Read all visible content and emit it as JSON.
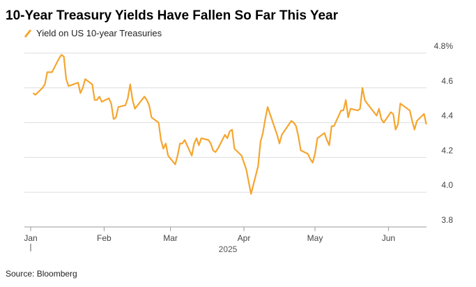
{
  "chart_data": {
    "type": "line",
    "title": "10-Year Treasury Yields Have Fallen So Far This Year",
    "x_axis_label": "2025",
    "source": "Source: Bloomberg",
    "x": [
      1,
      2,
      5,
      6,
      7,
      9,
      12,
      13,
      14,
      15,
      16,
      20,
      21,
      22,
      23,
      26,
      27,
      28,
      29,
      30,
      33,
      34,
      35,
      36,
      37,
      40,
      41,
      42,
      43,
      44,
      48,
      49,
      50,
      51,
      54,
      55,
      56,
      57,
      58,
      61,
      62,
      63,
      64,
      65,
      68,
      69,
      70,
      71,
      72,
      75,
      76,
      77,
      78,
      79,
      82,
      83,
      84,
      85,
      86,
      89,
      90,
      91,
      92,
      93,
      96,
      97,
      98,
      99,
      100,
      103,
      104,
      105,
      106,
      110,
      111,
      112,
      113,
      114,
      117,
      118,
      119,
      120,
      121,
      124,
      125,
      126,
      127,
      128,
      131,
      132,
      133,
      134,
      135,
      138,
      139,
      140,
      141,
      142,
      146,
      147,
      148,
      149,
      152,
      153,
      154,
      155,
      156,
      159,
      160,
      161,
      162,
      163,
      166,
      167
    ],
    "series": [
      {
        "name": "Yield on US 10-year Treasuries",
        "color": "#f5a52e",
        "values": [
          4.57,
          4.56,
          4.6,
          4.62,
          4.69,
          4.69,
          4.77,
          4.79,
          4.78,
          4.65,
          4.61,
          4.63,
          4.57,
          4.6,
          4.65,
          4.62,
          4.53,
          4.53,
          4.55,
          4.52,
          4.54,
          4.51,
          4.42,
          4.43,
          4.49,
          4.5,
          4.54,
          4.62,
          4.53,
          4.48,
          4.55,
          4.53,
          4.5,
          4.43,
          4.4,
          4.3,
          4.25,
          4.28,
          4.21,
          4.16,
          4.21,
          4.28,
          4.28,
          4.3,
          4.21,
          4.28,
          4.31,
          4.27,
          4.31,
          4.3,
          4.28,
          4.24,
          4.23,
          4.25,
          4.33,
          4.31,
          4.35,
          4.36,
          4.25,
          4.21,
          4.17,
          4.13,
          4.06,
          3.99,
          4.15,
          4.29,
          4.34,
          4.42,
          4.49,
          4.37,
          4.33,
          4.28,
          4.33,
          4.41,
          4.4,
          4.38,
          4.32,
          4.24,
          4.22,
          4.19,
          4.17,
          4.22,
          4.31,
          4.34,
          4.3,
          4.27,
          4.38,
          4.38,
          4.47,
          4.47,
          4.53,
          4.43,
          4.48,
          4.47,
          4.48,
          4.6,
          4.53,
          4.51,
          4.44,
          4.48,
          4.42,
          4.4,
          4.46,
          4.45,
          4.36,
          4.39,
          4.51,
          4.48,
          4.47,
          4.41,
          4.36,
          4.41,
          4.45,
          4.39
        ]
      }
    ],
    "xlim": [
      -1,
      175
    ],
    "xticks": [
      {
        "value": 0,
        "label": "Jan"
      },
      {
        "value": 31,
        "label": "Feb"
      },
      {
        "value": 59,
        "label": "Mar"
      },
      {
        "value": 90,
        "label": "Apr"
      },
      {
        "value": 120,
        "label": "May"
      },
      {
        "value": 151,
        "label": "Jun"
      }
    ],
    "ylim": [
      3.8,
      4.8
    ],
    "yticks": [
      {
        "value": 4.8,
        "label": "4.8%"
      },
      4.6,
      4.4,
      4.2,
      {
        "value": 4,
        "label": "4.0"
      },
      3.8
    ],
    "grid": true
  }
}
